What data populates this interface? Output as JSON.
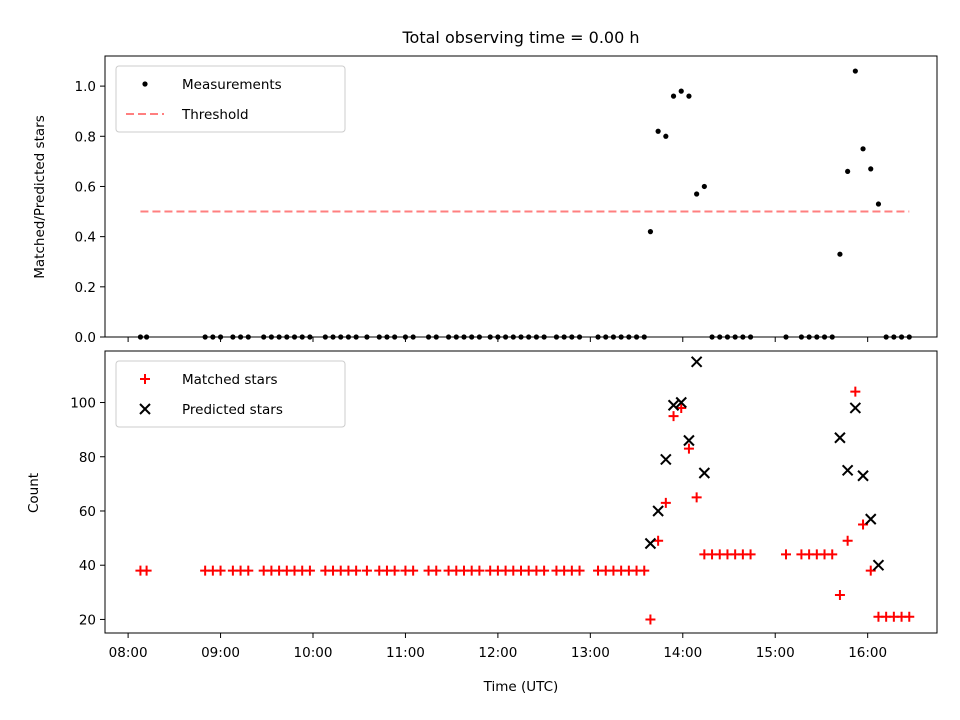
{
  "chart_data": [
    {
      "type": "scatter",
      "title": "Total observing time = 0.00 h",
      "xlabel": "",
      "ylabel": "Matched/Predicted stars",
      "xlim": [
        "07:45",
        "16:45"
      ],
      "ylim": [
        0,
        1.12
      ],
      "yticks": [
        0.0,
        0.2,
        0.4,
        0.6,
        0.8,
        1.0
      ],
      "ytick_labels": [
        "0.0",
        "0.2",
        "0.4",
        "0.6",
        "0.8",
        "1.0"
      ],
      "legend_position": "upper-left",
      "series": [
        {
          "name": "Measurements",
          "marker": "dot",
          "color": "#000000",
          "points": [
            [
              "08:08",
              0
            ],
            [
              "08:12",
              0
            ],
            [
              "08:50",
              0
            ],
            [
              "08:55",
              0
            ],
            [
              "09:00",
              0
            ],
            [
              "09:08",
              0
            ],
            [
              "09:13",
              0
            ],
            [
              "09:18",
              0
            ],
            [
              "09:28",
              0
            ],
            [
              "09:33",
              0
            ],
            [
              "09:38",
              0
            ],
            [
              "09:43",
              0
            ],
            [
              "09:48",
              0
            ],
            [
              "09:53",
              0
            ],
            [
              "09:58",
              0
            ],
            [
              "10:08",
              0
            ],
            [
              "10:13",
              0
            ],
            [
              "10:18",
              0
            ],
            [
              "10:23",
              0
            ],
            [
              "10:28",
              0
            ],
            [
              "10:35",
              0
            ],
            [
              "10:43",
              0
            ],
            [
              "10:48",
              0
            ],
            [
              "10:53",
              0
            ],
            [
              "11:00",
              0
            ],
            [
              "11:05",
              0
            ],
            [
              "11:15",
              0
            ],
            [
              "11:20",
              0
            ],
            [
              "11:28",
              0
            ],
            [
              "11:33",
              0
            ],
            [
              "11:38",
              0
            ],
            [
              "11:43",
              0
            ],
            [
              "11:48",
              0
            ],
            [
              "11:55",
              0
            ],
            [
              "12:00",
              0
            ],
            [
              "12:05",
              0
            ],
            [
              "12:10",
              0
            ],
            [
              "12:15",
              0
            ],
            [
              "12:20",
              0
            ],
            [
              "12:25",
              0
            ],
            [
              "12:30",
              0
            ],
            [
              "12:38",
              0
            ],
            [
              "12:43",
              0
            ],
            [
              "12:48",
              0
            ],
            [
              "12:53",
              0
            ],
            [
              "13:05",
              0
            ],
            [
              "13:10",
              0
            ],
            [
              "13:15",
              0
            ],
            [
              "13:20",
              0
            ],
            [
              "13:25",
              0
            ],
            [
              "13:30",
              0
            ],
            [
              "13:35",
              0
            ],
            [
              "13:39",
              0.42
            ],
            [
              "13:44",
              0.82
            ],
            [
              "13:49",
              0.8
            ],
            [
              "13:54",
              0.96
            ],
            [
              "13:59",
              0.98
            ],
            [
              "14:04",
              0.96
            ],
            [
              "14:09",
              0.57
            ],
            [
              "14:14",
              0.6
            ],
            [
              "14:19",
              0
            ],
            [
              "14:24",
              0
            ],
            [
              "14:29",
              0
            ],
            [
              "14:34",
              0
            ],
            [
              "14:39",
              0
            ],
            [
              "14:44",
              0
            ],
            [
              "15:07",
              0
            ],
            [
              "15:17",
              0
            ],
            [
              "15:22",
              0
            ],
            [
              "15:27",
              0
            ],
            [
              "15:32",
              0
            ],
            [
              "15:37",
              0
            ],
            [
              "15:42",
              0.33
            ],
            [
              "15:47",
              0.66
            ],
            [
              "15:52",
              1.06
            ],
            [
              "15:57",
              0.75
            ],
            [
              "16:02",
              0.67
            ],
            [
              "16:07",
              0.53
            ],
            [
              "16:12",
              0
            ],
            [
              "16:17",
              0
            ],
            [
              "16:22",
              0
            ],
            [
              "16:27",
              0
            ]
          ]
        },
        {
          "name": "Threshold",
          "marker": "dashed-line",
          "color": "#ff7f7f",
          "points": [
            [
              "08:08",
              0.5
            ],
            [
              "16:27",
              0.5
            ]
          ]
        }
      ]
    },
    {
      "type": "scatter",
      "title": "",
      "xlabel": "Time (UTC)",
      "ylabel": "Count",
      "xlim": [
        "07:45",
        "16:45"
      ],
      "ylim": [
        15,
        119
      ],
      "yticks": [
        20,
        40,
        60,
        80,
        100
      ],
      "ytick_labels": [
        "20",
        "40",
        "60",
        "80",
        "100"
      ],
      "xticks": [
        "08:00",
        "09:00",
        "10:00",
        "11:00",
        "12:00",
        "13:00",
        "14:00",
        "15:00",
        "16:00"
      ],
      "legend_position": "upper-left",
      "series": [
        {
          "name": "Matched stars",
          "marker": "plus",
          "color": "#ff0000",
          "points": [
            [
              "08:08",
              38
            ],
            [
              "08:12",
              38
            ],
            [
              "08:50",
              38
            ],
            [
              "08:55",
              38
            ],
            [
              "09:00",
              38
            ],
            [
              "09:08",
              38
            ],
            [
              "09:13",
              38
            ],
            [
              "09:18",
              38
            ],
            [
              "09:28",
              38
            ],
            [
              "09:33",
              38
            ],
            [
              "09:38",
              38
            ],
            [
              "09:43",
              38
            ],
            [
              "09:48",
              38
            ],
            [
              "09:53",
              38
            ],
            [
              "09:58",
              38
            ],
            [
              "10:08",
              38
            ],
            [
              "10:13",
              38
            ],
            [
              "10:18",
              38
            ],
            [
              "10:23",
              38
            ],
            [
              "10:28",
              38
            ],
            [
              "10:35",
              38
            ],
            [
              "10:43",
              38
            ],
            [
              "10:48",
              38
            ],
            [
              "10:53",
              38
            ],
            [
              "11:00",
              38
            ],
            [
              "11:05",
              38
            ],
            [
              "11:15",
              38
            ],
            [
              "11:20",
              38
            ],
            [
              "11:28",
              38
            ],
            [
              "11:33",
              38
            ],
            [
              "11:38",
              38
            ],
            [
              "11:43",
              38
            ],
            [
              "11:48",
              38
            ],
            [
              "11:55",
              38
            ],
            [
              "12:00",
              38
            ],
            [
              "12:05",
              38
            ],
            [
              "12:10",
              38
            ],
            [
              "12:15",
              38
            ],
            [
              "12:20",
              38
            ],
            [
              "12:25",
              38
            ],
            [
              "12:30",
              38
            ],
            [
              "12:38",
              38
            ],
            [
              "12:43",
              38
            ],
            [
              "12:48",
              38
            ],
            [
              "12:53",
              38
            ],
            [
              "13:05",
              38
            ],
            [
              "13:10",
              38
            ],
            [
              "13:15",
              38
            ],
            [
              "13:20",
              38
            ],
            [
              "13:25",
              38
            ],
            [
              "13:30",
              38
            ],
            [
              "13:35",
              38
            ],
            [
              "13:39",
              20
            ],
            [
              "13:44",
              49
            ],
            [
              "13:49",
              63
            ],
            [
              "13:54",
              95
            ],
            [
              "13:59",
              98
            ],
            [
              "14:04",
              83
            ],
            [
              "14:09",
              65
            ],
            [
              "14:14",
              44
            ],
            [
              "14:19",
              44
            ],
            [
              "14:24",
              44
            ],
            [
              "14:29",
              44
            ],
            [
              "14:34",
              44
            ],
            [
              "14:39",
              44
            ],
            [
              "14:44",
              44
            ],
            [
              "15:07",
              44
            ],
            [
              "15:17",
              44
            ],
            [
              "15:22",
              44
            ],
            [
              "15:27",
              44
            ],
            [
              "15:32",
              44
            ],
            [
              "15:37",
              44
            ],
            [
              "15:42",
              29
            ],
            [
              "15:47",
              49
            ],
            [
              "15:52",
              104
            ],
            [
              "15:57",
              55
            ],
            [
              "16:02",
              38
            ],
            [
              "16:07",
              21
            ],
            [
              "16:12",
              21
            ],
            [
              "16:17",
              21
            ],
            [
              "16:22",
              21
            ],
            [
              "16:27",
              21
            ]
          ]
        },
        {
          "name": "Predicted stars",
          "marker": "x",
          "color": "#000000",
          "points": [
            [
              "13:39",
              48
            ],
            [
              "13:44",
              60
            ],
            [
              "13:49",
              79
            ],
            [
              "13:54",
              99
            ],
            [
              "13:59",
              100
            ],
            [
              "14:04",
              86
            ],
            [
              "14:09",
              115
            ],
            [
              "14:14",
              74
            ],
            [
              "15:42",
              87
            ],
            [
              "15:47",
              75
            ],
            [
              "15:52",
              98
            ],
            [
              "15:57",
              73
            ],
            [
              "16:02",
              57
            ],
            [
              "16:07",
              40
            ]
          ]
        }
      ]
    }
  ]
}
